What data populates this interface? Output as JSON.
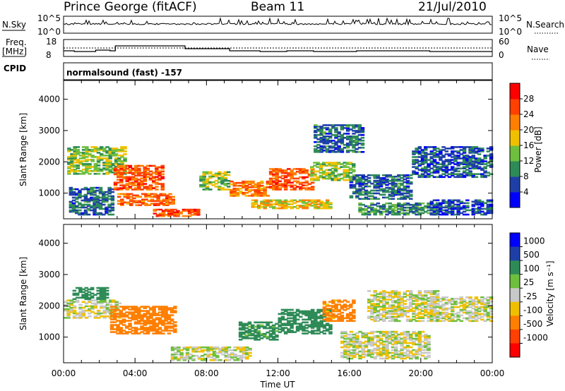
{
  "header": {
    "station": "Prince George (fitACF)",
    "beam": "Beam 11",
    "date": "21/Jul/2010"
  },
  "panels": {
    "nsky": {
      "left_label": "N.Sky",
      "top_tick": "10^5",
      "bottom_tick": "10^0",
      "right_label": "N.Search"
    },
    "freq": {
      "left_label_1": "Freq.",
      "left_label_2": "[MHz]",
      "tick_top": "18",
      "tick_bottom": "8",
      "right_tick_top": "60",
      "right_tick_bottom": "0",
      "right_label": "Nave"
    },
    "cpid": {
      "left_label": "CPID",
      "text": "normalsound (fast) -157"
    }
  },
  "colors": {
    "power": [
      "#0000ff",
      "#1f3fa8",
      "#2e8b57",
      "#6fbf3f",
      "#f0c000",
      "#ff7f00",
      "#ff4000",
      "#ff0000"
    ],
    "velocity": [
      "#0000ff",
      "#1f3fa8",
      "#2e8b57",
      "#6fbf3f",
      "#c8c8c8",
      "#f0c000",
      "#ff7f00",
      "#ff4000",
      "#ff0000"
    ]
  },
  "chart_data": [
    {
      "type": "heatmap",
      "name": "power",
      "xlabel": "Time UT",
      "ylabel": "Slant Range [km]",
      "x_ticks": [
        "00:00",
        "04:00",
        "08:00",
        "12:00",
        "16:00",
        "20:00",
        "00:00"
      ],
      "xlim": [
        0,
        24
      ],
      "y_ticks": [
        1000,
        2000,
        3000,
        4000
      ],
      "ylim": [
        180,
        4600
      ],
      "colorbar": {
        "label": "Power [dB]",
        "ticks": [
          4,
          8,
          12,
          16,
          20,
          24,
          28
        ],
        "range": [
          0,
          32
        ]
      },
      "regions": [
        {
          "t": [
            0.2,
            3.5
          ],
          "r": [
            1600,
            2500
          ],
          "v": 14
        },
        {
          "t": [
            0.3,
            2.8
          ],
          "r": [
            300,
            1200
          ],
          "v": 8
        },
        {
          "t": [
            2.8,
            5.6
          ],
          "r": [
            1100,
            1900
          ],
          "v": 25
        },
        {
          "t": [
            3.0,
            6.2
          ],
          "r": [
            600,
            1000
          ],
          "v": 24
        },
        {
          "t": [
            5.0,
            7.6
          ],
          "r": [
            250,
            500
          ],
          "v": 26
        },
        {
          "t": [
            7.6,
            9.3
          ],
          "r": [
            1100,
            1700
          ],
          "v": 14
        },
        {
          "t": [
            9.3,
            11.5
          ],
          "r": [
            900,
            1400
          ],
          "v": 23
        },
        {
          "t": [
            10.5,
            15.0
          ],
          "r": [
            500,
            800
          ],
          "v": 18
        },
        {
          "t": [
            11.5,
            14.0
          ],
          "r": [
            1100,
            1800
          ],
          "v": 25
        },
        {
          "t": [
            13.8,
            16.3
          ],
          "r": [
            1400,
            2000
          ],
          "v": 15
        },
        {
          "t": [
            14.0,
            16.8
          ],
          "r": [
            2300,
            3200
          ],
          "v": 8
        },
        {
          "t": [
            16.0,
            19.5
          ],
          "r": [
            800,
            1600
          ],
          "v": 8
        },
        {
          "t": [
            16.5,
            21.0
          ],
          "r": [
            300,
            700
          ],
          "v": 10
        },
        {
          "t": [
            19.5,
            24.0
          ],
          "r": [
            1500,
            2500
          ],
          "v": 7
        },
        {
          "t": [
            20.5,
            24.0
          ],
          "r": [
            300,
            800
          ],
          "v": 6
        }
      ]
    },
    {
      "type": "heatmap",
      "name": "velocity",
      "xlabel": "Time UT",
      "ylabel": "Slant Range [km]",
      "x_ticks": [
        "00:00",
        "04:00",
        "08:00",
        "12:00",
        "16:00",
        "20:00",
        "00:00"
      ],
      "xlim": [
        0,
        24
      ],
      "y_ticks": [
        1000,
        2000,
        3000,
        4000
      ],
      "ylim": [
        180,
        4600
      ],
      "colorbar": {
        "label": "Velocity [m s⁻¹]",
        "ticks": [
          "1000",
          "500",
          "100",
          "25",
          "-25",
          "-100",
          "-500",
          "-1000"
        ]
      },
      "regions": [
        {
          "t": [
            0.0,
            3.2
          ],
          "r": [
            1600,
            2200
          ],
          "v": 0
        },
        {
          "t": [
            0.5,
            2.5
          ],
          "r": [
            2200,
            2600
          ],
          "v": 200
        },
        {
          "t": [
            2.6,
            6.3
          ],
          "r": [
            1100,
            2000
          ],
          "v": -300
        },
        {
          "t": [
            6.0,
            10.5
          ],
          "r": [
            250,
            700
          ],
          "v": 0
        },
        {
          "t": [
            9.8,
            12.0
          ],
          "r": [
            900,
            1500
          ],
          "v": 150
        },
        {
          "t": [
            12.0,
            15.0
          ],
          "r": [
            1100,
            1900
          ],
          "v": 250
        },
        {
          "t": [
            14.5,
            16.3
          ],
          "r": [
            1500,
            2200
          ],
          "v": -150
        },
        {
          "t": [
            15.5,
            20.5
          ],
          "r": [
            300,
            1200
          ],
          "v": 0
        },
        {
          "t": [
            17.0,
            21.0
          ],
          "r": [
            1500,
            2500
          ],
          "v": 0
        },
        {
          "t": [
            20.5,
            24.0
          ],
          "r": [
            1500,
            2300
          ],
          "v": 0
        }
      ]
    }
  ]
}
